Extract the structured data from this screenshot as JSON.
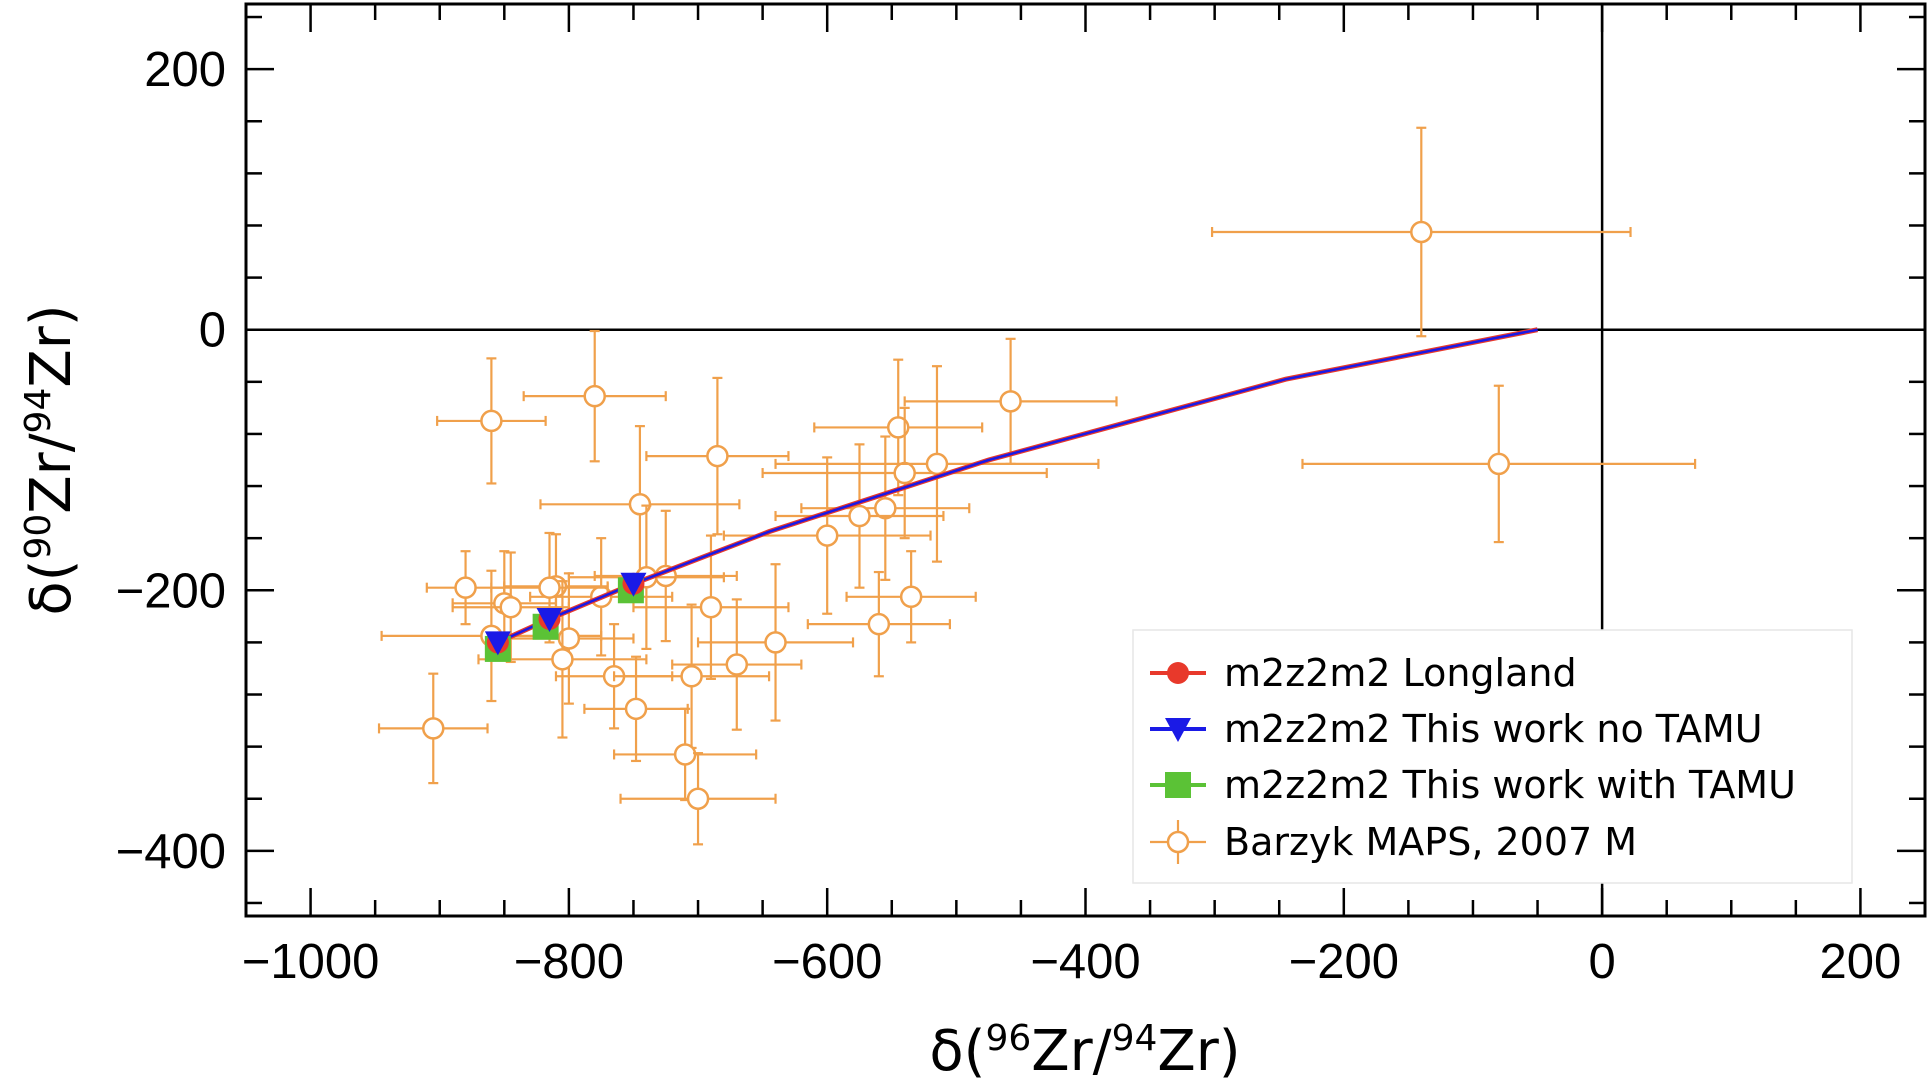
{
  "chart_data": {
    "type": "scatter",
    "xlabel": {
      "pre": "δ(",
      "sup1": "96",
      "mid": "Zr/",
      "sup2": "94",
      "post": "Zr)"
    },
    "ylabel": {
      "pre": "δ(",
      "sup1": "90",
      "mid": "Zr/",
      "sup2": "94",
      "post": "Zr)"
    },
    "xlim": [
      -1050,
      250
    ],
    "ylim": [
      -450,
      250
    ],
    "xticks": [
      -1000,
      -800,
      -600,
      -400,
      -200,
      0,
      200
    ],
    "xtick_labels": [
      "−1000",
      "−800",
      "−600",
      "−400",
      "−200",
      "0",
      "200"
    ],
    "yticks": [
      -400,
      -200,
      0,
      200
    ],
    "ytick_labels": [
      "−400",
      "−200",
      "0",
      "200"
    ],
    "reference_lines": {
      "x": 0,
      "y": 0
    },
    "grid": false,
    "legend_position": "bottom-right",
    "series": [
      {
        "name": "m2z2m2 Longland",
        "type": "line-markers",
        "color": "#e8392b",
        "marker": "circle",
        "line": [
          [
            -855,
            -240
          ],
          [
            -815,
            -222
          ],
          [
            -750,
            -195
          ],
          [
            -645,
            -155
          ],
          [
            -475,
            -100
          ],
          [
            -245,
            -38
          ],
          [
            -50,
            0
          ]
        ],
        "markers": [
          [
            -855,
            -240
          ],
          [
            -815,
            -222
          ],
          [
            -750,
            -195
          ]
        ]
      },
      {
        "name": "m2z2m2 This work no TAMU",
        "type": "line-markers",
        "color": "#1a1ae6",
        "marker": "triangle-down",
        "line": [
          [
            -855,
            -240
          ],
          [
            -815,
            -222
          ],
          [
            -750,
            -195
          ],
          [
            -645,
            -155
          ],
          [
            -475,
            -100
          ],
          [
            -245,
            -38
          ],
          [
            -50,
            0
          ]
        ],
        "markers": [
          [
            -855,
            -240
          ],
          [
            -815,
            -222
          ],
          [
            -750,
            -195
          ]
        ]
      },
      {
        "name": "m2z2m2 This work with TAMU",
        "type": "markers",
        "color": "#5bc236",
        "marker": "square",
        "markers": [
          [
            -855,
            -245
          ],
          [
            -818,
            -228
          ],
          [
            -752,
            -200
          ]
        ]
      },
      {
        "name": "Barzyk MAPS, 2007 M",
        "type": "errorbar",
        "color": "#f0a04b",
        "marker": "open-circle",
        "points": [
          {
            "x": -140,
            "y": 75,
            "xerr": 162,
            "yerr": 80
          },
          {
            "x": -80,
            "y": -103,
            "xerr": 152,
            "yerr": 60
          },
          {
            "x": -458,
            "y": -55,
            "xerr": 82,
            "yerr": 48
          },
          {
            "x": -545,
            "y": -75,
            "xerr": 65,
            "yerr": 52
          },
          {
            "x": -540,
            "y": -110,
            "xerr": 110,
            "yerr": 50
          },
          {
            "x": -515,
            "y": -103,
            "xerr": 125,
            "yerr": 75
          },
          {
            "x": -555,
            "y": -137,
            "xerr": 65,
            "yerr": 55
          },
          {
            "x": -575,
            "y": -143,
            "xerr": 65,
            "yerr": 55
          },
          {
            "x": -600,
            "y": -158,
            "xerr": 80,
            "yerr": 60
          },
          {
            "x": -685,
            "y": -97,
            "xerr": 55,
            "yerr": 60
          },
          {
            "x": -780,
            "y": -51,
            "xerr": 55,
            "yerr": 50
          },
          {
            "x": -860,
            "y": -70,
            "xerr": 42,
            "yerr": 48
          },
          {
            "x": -745,
            "y": -134,
            "xerr": 77,
            "yerr": 60
          },
          {
            "x": -725,
            "y": -189,
            "xerr": 55,
            "yerr": 50
          },
          {
            "x": -740,
            "y": -190,
            "xerr": 60,
            "yerr": 55
          },
          {
            "x": -690,
            "y": -213,
            "xerr": 60,
            "yerr": 55
          },
          {
            "x": -775,
            "y": -205,
            "xerr": 55,
            "yerr": 45
          },
          {
            "x": -810,
            "y": -197,
            "xerr": 40,
            "yerr": 40
          },
          {
            "x": -815,
            "y": -198,
            "xerr": 45,
            "yerr": 42
          },
          {
            "x": -850,
            "y": -210,
            "xerr": 40,
            "yerr": 40
          },
          {
            "x": -845,
            "y": -213,
            "xerr": 45,
            "yerr": 42
          },
          {
            "x": -880,
            "y": -198,
            "xerr": 30,
            "yerr": 28
          },
          {
            "x": -860,
            "y": -235,
            "xerr": 85,
            "yerr": 50
          },
          {
            "x": -800,
            "y": -237,
            "xerr": 50,
            "yerr": 50
          },
          {
            "x": -805,
            "y": -253,
            "xerr": 65,
            "yerr": 60
          },
          {
            "x": -765,
            "y": -266,
            "xerr": 45,
            "yerr": 40
          },
          {
            "x": -748,
            "y": -291,
            "xerr": 40,
            "yerr": 40
          },
          {
            "x": -705,
            "y": -266,
            "xerr": 60,
            "yerr": 55
          },
          {
            "x": -670,
            "y": -257,
            "xerr": 50,
            "yerr": 50
          },
          {
            "x": -640,
            "y": -240,
            "xerr": 60,
            "yerr": 60
          },
          {
            "x": -560,
            "y": -226,
            "xerr": 55,
            "yerr": 40
          },
          {
            "x": -535,
            "y": -205,
            "xerr": 50,
            "yerr": 35
          },
          {
            "x": -710,
            "y": -326,
            "xerr": 55,
            "yerr": 35
          },
          {
            "x": -700,
            "y": -360,
            "xerr": 60,
            "yerr": 35
          },
          {
            "x": -905,
            "y": -306,
            "xerr": 42,
            "yerr": 42
          }
        ]
      }
    ]
  }
}
